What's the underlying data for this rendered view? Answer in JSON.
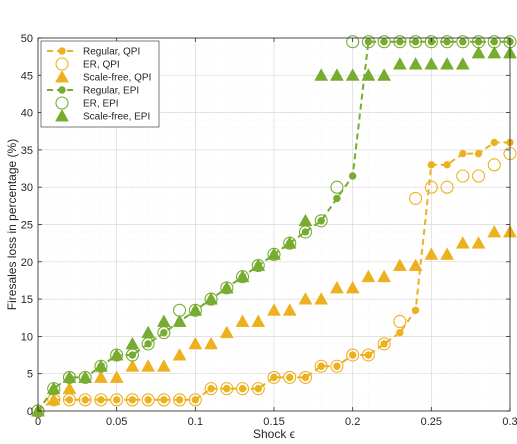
{
  "chart_data": {
    "type": "line",
    "xlabel": "Shock ϵ",
    "ylabel": "Firesales loss in percentage (%)",
    "xlim": [
      0,
      0.3
    ],
    "ylim": [
      0,
      50
    ],
    "xticks": [
      0,
      0.05,
      0.1,
      0.15,
      0.2,
      0.25,
      0.3
    ],
    "xtick_labels": [
      "0",
      "0.05",
      "0.1",
      "0.15",
      "0.2",
      "0.25",
      "0.3"
    ],
    "yticks": [
      0,
      5,
      10,
      15,
      20,
      25,
      30,
      35,
      40,
      45,
      50
    ],
    "ytick_labels": [
      "0",
      "5",
      "10",
      "15",
      "20",
      "25",
      "30",
      "35",
      "40",
      "45",
      "50"
    ],
    "grid": true,
    "legend_position": "top-left",
    "colors": {
      "qpi": "#EDB120",
      "epi": "#77AC30"
    },
    "series": [
      {
        "name": "Regular, QPI",
        "group": "qpi",
        "style": "dash-dot-marker",
        "x": [
          0,
          0.01,
          0.02,
          0.03,
          0.04,
          0.05,
          0.06,
          0.07,
          0.08,
          0.09,
          0.1,
          0.11,
          0.12,
          0.13,
          0.14,
          0.15,
          0.16,
          0.17,
          0.18,
          0.19,
          0.2,
          0.21,
          0.22,
          0.23,
          0.24,
          0.25,
          0.26,
          0.27,
          0.28,
          0.29,
          0.3
        ],
        "y": [
          0,
          1.5,
          1.5,
          1.5,
          1.5,
          1.5,
          1.5,
          1.5,
          1.5,
          1.5,
          1.5,
          3,
          3,
          3,
          3,
          4.5,
          4.5,
          4.5,
          6,
          6,
          7.5,
          7.5,
          9,
          10.5,
          13.5,
          33,
          33,
          34.5,
          34.5,
          36,
          36
        ]
      },
      {
        "name": "ER, QPI",
        "group": "qpi",
        "style": "open-circle",
        "x": [
          0,
          0.01,
          0.02,
          0.03,
          0.04,
          0.05,
          0.06,
          0.07,
          0.08,
          0.09,
          0.1,
          0.11,
          0.12,
          0.13,
          0.14,
          0.15,
          0.16,
          0.17,
          0.18,
          0.19,
          0.2,
          0.21,
          0.22,
          0.23,
          0.24,
          0.25,
          0.26,
          0.27,
          0.28,
          0.29,
          0.3
        ],
        "y": [
          0,
          1.5,
          1.5,
          1.5,
          1.5,
          1.5,
          1.5,
          1.5,
          1.5,
          1.5,
          1.5,
          3,
          3,
          3,
          3,
          4.5,
          4.5,
          4.5,
          6,
          6,
          7.5,
          7.5,
          9,
          12,
          28.5,
          30,
          30,
          31.5,
          31.5,
          33,
          34.5
        ]
      },
      {
        "name": "Scale-free, QPI",
        "group": "qpi",
        "style": "filled-triangle",
        "x": [
          0,
          0.01,
          0.02,
          0.03,
          0.04,
          0.05,
          0.06,
          0.07,
          0.08,
          0.09,
          0.1,
          0.11,
          0.12,
          0.13,
          0.14,
          0.15,
          0.16,
          0.17,
          0.18,
          0.19,
          0.2,
          0.21,
          0.22,
          0.23,
          0.24,
          0.25,
          0.26,
          0.27,
          0.28,
          0.29,
          0.3
        ],
        "y": [
          0,
          1.5,
          3,
          4.5,
          4.5,
          4.5,
          6,
          6,
          6,
          7.5,
          9,
          9,
          10.5,
          12,
          12,
          13.5,
          13.5,
          15,
          15,
          16.5,
          16.5,
          18,
          18,
          19.5,
          19.5,
          21,
          21,
          22.5,
          22.5,
          24,
          24
        ]
      },
      {
        "name": "Regular, EPI",
        "group": "epi",
        "style": "dash-dot-marker",
        "x": [
          0,
          0.01,
          0.02,
          0.03,
          0.04,
          0.05,
          0.06,
          0.07,
          0.08,
          0.09,
          0.1,
          0.11,
          0.12,
          0.13,
          0.14,
          0.15,
          0.16,
          0.17,
          0.18,
          0.19,
          0.2,
          0.21,
          0.22,
          0.23,
          0.24,
          0.25,
          0.26,
          0.27,
          0.28,
          0.29,
          0.3
        ],
        "y": [
          0,
          3,
          4.5,
          4.5,
          6,
          7.5,
          7.5,
          9,
          10.5,
          12,
          13.5,
          15,
          16.5,
          18,
          19.5,
          21,
          22.5,
          24,
          25.5,
          28.5,
          31.5,
          49.5,
          49.5,
          49.5,
          49.5,
          49.5,
          49.5,
          49.5,
          49.5,
          49.5,
          49.5
        ]
      },
      {
        "name": "ER, EPI",
        "group": "epi",
        "style": "open-circle",
        "x": [
          0,
          0.01,
          0.02,
          0.03,
          0.04,
          0.05,
          0.06,
          0.07,
          0.08,
          0.09,
          0.1,
          0.11,
          0.12,
          0.13,
          0.14,
          0.15,
          0.16,
          0.17,
          0.18,
          0.19,
          0.2,
          0.21,
          0.22,
          0.23,
          0.24,
          0.25,
          0.26,
          0.27,
          0.28,
          0.29,
          0.3
        ],
        "y": [
          0,
          3,
          4.5,
          4.5,
          6,
          7.5,
          7.5,
          9,
          10.5,
          13.5,
          13.5,
          15,
          16.5,
          18,
          19.5,
          21,
          22.5,
          24,
          25.5,
          30,
          49.5,
          49.5,
          49.5,
          49.5,
          49.5,
          49.5,
          49.5,
          49.5,
          49.5,
          49.5,
          49.5
        ]
      },
      {
        "name": "Scale-free, EPI",
        "group": "epi",
        "style": "filled-triangle",
        "x": [
          0,
          0.01,
          0.02,
          0.03,
          0.04,
          0.05,
          0.06,
          0.07,
          0.08,
          0.09,
          0.1,
          0.11,
          0.12,
          0.13,
          0.14,
          0.15,
          0.16,
          0.17,
          0.18,
          0.19,
          0.2,
          0.21,
          0.22,
          0.23,
          0.24,
          0.25,
          0.26,
          0.27,
          0.28,
          0.29,
          0.3
        ],
        "y": [
          0,
          3,
          4.5,
          4.5,
          6,
          7.5,
          9,
          10.5,
          12,
          12,
          13.5,
          15,
          16.5,
          18,
          19.5,
          21,
          22.5,
          25.5,
          45,
          45,
          45,
          45,
          45,
          46.5,
          46.5,
          46.5,
          46.5,
          46.5,
          48,
          48,
          48
        ]
      }
    ]
  }
}
